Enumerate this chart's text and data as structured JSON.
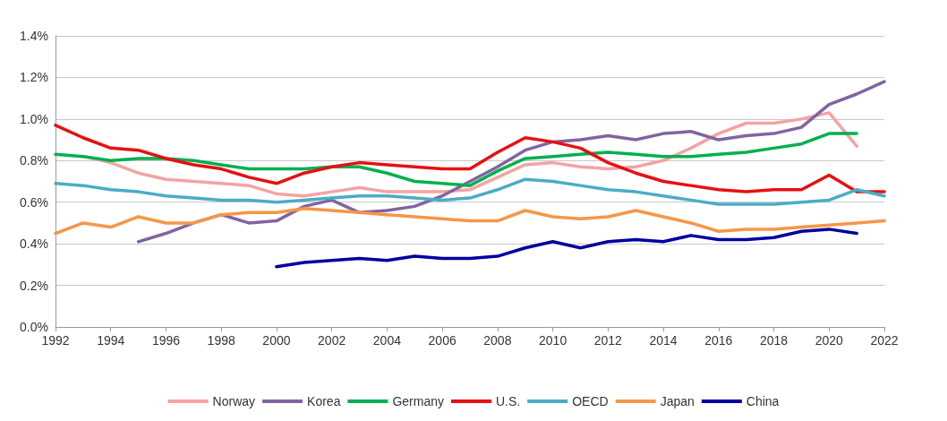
{
  "chart_data": {
    "type": "line",
    "x": [
      1992,
      1993,
      1994,
      1995,
      1996,
      1997,
      1998,
      1999,
      2000,
      2001,
      2002,
      2003,
      2004,
      2005,
      2006,
      2007,
      2008,
      2009,
      2010,
      2011,
      2012,
      2013,
      2014,
      2015,
      2016,
      2017,
      2018,
      2019,
      2020,
      2021,
      2022
    ],
    "xlim": [
      1992,
      2022
    ],
    "xticks": [
      1992,
      1994,
      1996,
      1998,
      2000,
      2002,
      2004,
      2006,
      2008,
      2010,
      2012,
      2014,
      2016,
      2018,
      2020,
      2022
    ],
    "ylim": [
      0,
      1.4
    ],
    "yticks": [
      {
        "value": 0,
        "label": "0.0%"
      },
      {
        "value": 0.2,
        "label": "0.2%"
      },
      {
        "value": 0.4,
        "label": "0.4%"
      },
      {
        "value": 0.6,
        "label": "0.6%"
      },
      {
        "value": 0.8,
        "label": "0.8%"
      },
      {
        "value": 1.0,
        "label": "1.0%"
      },
      {
        "value": 1.2,
        "label": "1.2%"
      },
      {
        "value": 1.4,
        "label": "1.4%"
      }
    ],
    "grid": "y",
    "legend": "bottom",
    "marker": "none",
    "line_style": "solid",
    "series": [
      {
        "name": "Norway",
        "color": "#f4a3a3",
        "values": [
          null,
          0.82,
          0.79,
          0.74,
          0.71,
          0.7,
          0.69,
          0.68,
          0.64,
          0.63,
          0.65,
          0.67,
          0.65,
          0.65,
          0.65,
          0.66,
          0.72,
          0.78,
          0.79,
          0.77,
          0.76,
          0.77,
          0.8,
          0.86,
          0.93,
          0.98,
          0.98,
          1.0,
          1.03,
          0.87,
          null
        ]
      },
      {
        "name": "Korea",
        "color": "#8064a2",
        "values": [
          null,
          null,
          null,
          0.41,
          0.45,
          0.5,
          0.54,
          0.5,
          0.51,
          0.58,
          0.61,
          0.55,
          0.56,
          0.58,
          0.63,
          0.7,
          0.77,
          0.85,
          0.89,
          0.9,
          0.92,
          0.9,
          0.93,
          0.94,
          0.9,
          0.92,
          0.93,
          0.96,
          1.07,
          1.12,
          1.18
        ]
      },
      {
        "name": "Germany",
        "color": "#00b050",
        "values": [
          0.83,
          0.82,
          0.8,
          0.81,
          0.81,
          0.8,
          0.78,
          0.76,
          0.76,
          0.76,
          0.77,
          0.77,
          0.74,
          0.7,
          0.69,
          0.68,
          0.75,
          0.81,
          0.82,
          0.83,
          0.84,
          0.83,
          0.82,
          0.82,
          0.83,
          0.84,
          0.86,
          0.88,
          0.93,
          0.93,
          null
        ]
      },
      {
        "name": "U.S.",
        "color": "#e81010",
        "values": [
          0.97,
          0.91,
          0.86,
          0.85,
          0.81,
          0.78,
          0.76,
          0.72,
          0.69,
          0.74,
          0.77,
          0.79,
          0.78,
          0.77,
          0.76,
          0.76,
          0.84,
          0.91,
          0.89,
          0.86,
          0.79,
          0.74,
          0.7,
          0.68,
          0.66,
          0.65,
          0.66,
          0.66,
          0.73,
          0.65,
          0.65
        ]
      },
      {
        "name": "OECD",
        "color": "#4bacc6",
        "values": [
          0.69,
          0.68,
          0.66,
          0.65,
          0.63,
          0.62,
          0.61,
          0.61,
          0.6,
          0.61,
          0.62,
          0.63,
          0.63,
          0.62,
          0.61,
          0.62,
          0.66,
          0.71,
          0.7,
          0.68,
          0.66,
          0.65,
          0.63,
          0.61,
          0.59,
          0.59,
          0.59,
          0.6,
          0.61,
          0.66,
          0.63
        ]
      },
      {
        "name": "Japan",
        "color": "#f79646",
        "values": [
          0.45,
          0.5,
          0.48,
          0.53,
          0.5,
          0.5,
          0.54,
          0.55,
          0.55,
          0.57,
          0.56,
          0.55,
          0.54,
          0.53,
          0.52,
          0.51,
          0.51,
          0.56,
          0.53,
          0.52,
          0.53,
          0.56,
          0.53,
          0.5,
          0.46,
          0.47,
          0.47,
          0.48,
          0.49,
          0.5,
          0.51
        ]
      },
      {
        "name": "China",
        "color": "#0000a0",
        "values": [
          null,
          null,
          null,
          null,
          null,
          null,
          null,
          null,
          0.29,
          0.31,
          0.32,
          0.33,
          0.32,
          0.34,
          0.33,
          0.33,
          0.34,
          0.38,
          0.41,
          0.38,
          0.41,
          0.42,
          0.41,
          0.44,
          0.42,
          0.42,
          0.43,
          0.46,
          0.47,
          0.45,
          null
        ]
      }
    ]
  }
}
